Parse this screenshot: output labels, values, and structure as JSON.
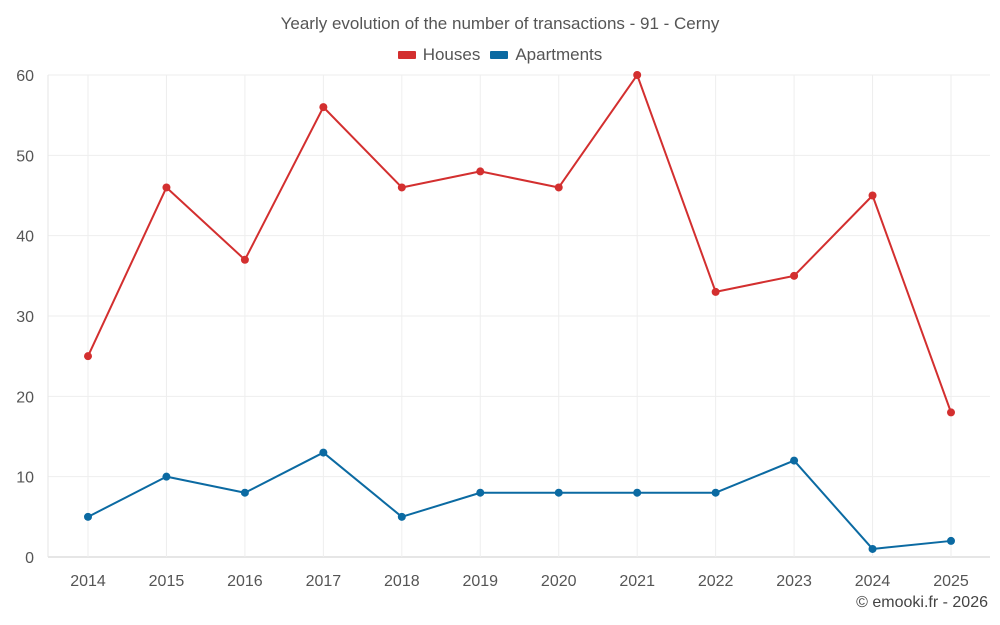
{
  "chart_data": {
    "type": "line",
    "title": "Yearly evolution of the number of transactions - 91 - Cerny",
    "categories": [
      "2014",
      "2015",
      "2016",
      "2017",
      "2018",
      "2019",
      "2020",
      "2021",
      "2022",
      "2023",
      "2024",
      "2025"
    ],
    "series": [
      {
        "name": "Houses",
        "color": "#d32f2f",
        "values": [
          25,
          46,
          37,
          56,
          46,
          48,
          46,
          60,
          33,
          35,
          45,
          18
        ]
      },
      {
        "name": "Apartments",
        "color": "#0b6aa2",
        "values": [
          5,
          10,
          8,
          13,
          5,
          8,
          8,
          8,
          8,
          12,
          1,
          2
        ]
      }
    ],
    "xlabel": "",
    "ylabel": "",
    "ylim": [
      0,
      60
    ],
    "yticks": [
      0,
      10,
      20,
      30,
      40,
      50,
      60
    ],
    "grid": true,
    "legend_position": "top-center"
  },
  "credit": "© emooki.fr - 2026"
}
